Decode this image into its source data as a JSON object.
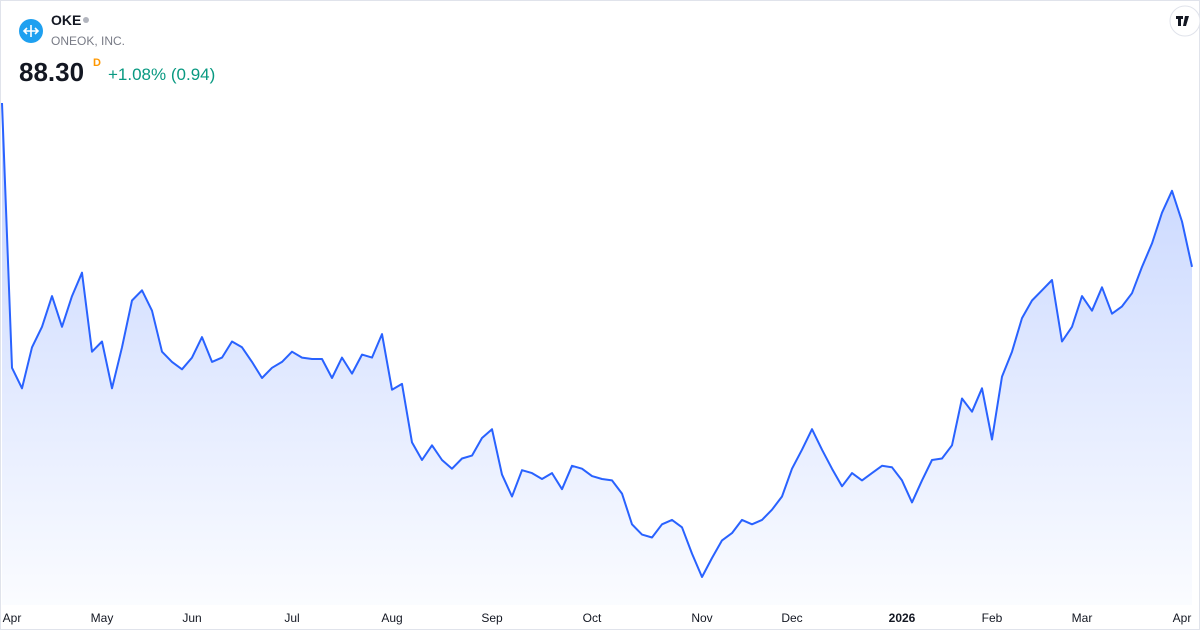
{
  "header": {
    "symbol": "OKE",
    "company": "ONEOK, INC.",
    "price": "88.30",
    "interval": "D",
    "change": "+1.08% (0.94)"
  },
  "chart_data": {
    "type": "area",
    "color": "#2962ff",
    "categories": [
      null,
      "Apr",
      null,
      null,
      null,
      null,
      null,
      null,
      null,
      null,
      "May",
      null,
      null,
      null,
      null,
      null,
      null,
      null,
      null,
      "Jun",
      null,
      null,
      null,
      null,
      null,
      null,
      null,
      null,
      null,
      "Jul",
      null,
      null,
      null,
      null,
      null,
      null,
      null,
      null,
      null,
      "Aug",
      null,
      null,
      null,
      null,
      null,
      null,
      null,
      null,
      null,
      "Sep",
      null,
      null,
      null,
      null,
      null,
      null,
      null,
      null,
      null,
      "Oct",
      null,
      null,
      null,
      null,
      null,
      null,
      null,
      null,
      null,
      null,
      "Nov",
      null,
      null,
      null,
      null,
      null,
      null,
      null,
      null,
      "Dec",
      null,
      null,
      null,
      null,
      null,
      null,
      null,
      null,
      null,
      null,
      "2026",
      null,
      null,
      null,
      null,
      null,
      null,
      null,
      null,
      "Feb",
      null,
      null,
      null,
      null,
      null,
      null,
      null,
      null,
      "Mar",
      null,
      null,
      null,
      null,
      null,
      null,
      null,
      null,
      null,
      "Apr",
      null
    ],
    "values": [
      99.5,
      81.4,
      80.0,
      82.8,
      84.2,
      86.3,
      84.2,
      86.3,
      87.9,
      82.5,
      83.2,
      80.0,
      82.8,
      86.0,
      86.7,
      85.3,
      82.5,
      81.8,
      81.3,
      82.1,
      83.5,
      81.8,
      82.1,
      83.2,
      82.8,
      81.8,
      80.7,
      81.4,
      81.8,
      82.5,
      82.1,
      82.0,
      82.0,
      80.7,
      82.1,
      81.0,
      82.3,
      82.1,
      83.7,
      79.9,
      80.3,
      76.3,
      75.1,
      76.1,
      75.1,
      74.5,
      75.2,
      75.4,
      76.6,
      77.2,
      74.1,
      72.6,
      74.4,
      74.2,
      73.8,
      74.2,
      73.1,
      74.7,
      74.5,
      74.0,
      73.8,
      73.7,
      72.8,
      70.7,
      70.0,
      69.8,
      70.7,
      71.0,
      70.5,
      68.7,
      67.1,
      68.4,
      69.6,
      70.1,
      71.0,
      70.7,
      71.0,
      71.7,
      72.6,
      74.5,
      75.8,
      77.2,
      75.8,
      74.5,
      73.3,
      74.2,
      73.7,
      74.2,
      74.7,
      74.6,
      73.7,
      72.2,
      73.7,
      75.1,
      75.2,
      76.1,
      79.3,
      78.4,
      80.0,
      76.5,
      80.8,
      82.5,
      84.8,
      86.0,
      86.7,
      87.4,
      83.2,
      84.2,
      86.3,
      85.3,
      86.9,
      85.1,
      85.6,
      86.5,
      88.3,
      89.9,
      92.0,
      93.5,
      91.4,
      88.3
    ]
  }
}
